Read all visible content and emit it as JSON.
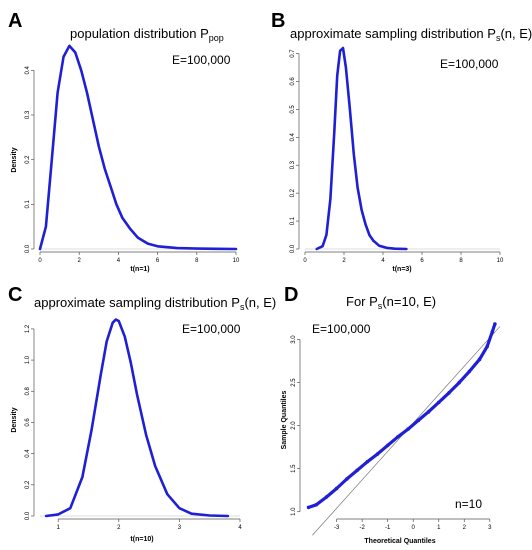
{
  "figure": {
    "panels": [
      {
        "letter": "A",
        "title": "population distribution P",
        "title_sub": "pop",
        "title_tail": "",
        "annotation": "E=100,000",
        "ylabel": "Density",
        "xlabel": "t(n=1)"
      },
      {
        "letter": "B",
        "title": "approximate sampling distribution P",
        "title_sub": "s",
        "title_tail": "(n, E)",
        "annotation": "E=100,000",
        "ylabel": "",
        "xlabel": "t(n=3)"
      },
      {
        "letter": "C",
        "title": "approximate sampling distribution P",
        "title_sub": "s",
        "title_tail": "(n, E)",
        "annotation": "E=100,000",
        "ylabel": "Density",
        "xlabel": "t(n=10)"
      },
      {
        "letter": "D",
        "title": "For P",
        "title_sub": "s",
        "title_tail": "(n=10, E)",
        "annotation": "E=100,000",
        "annotation2": "n=10",
        "ylabel": "Sample Quantiles",
        "xlabel": "Theoretical Quantiles"
      }
    ]
  },
  "colors": {
    "curve": "#1f1fd6",
    "baseline": "#bbbbbb",
    "refline": "#777777"
  },
  "chart_data": [
    {
      "type": "line",
      "title": "population distribution Ppop",
      "xlabel": "t(n=1)",
      "ylabel": "Density",
      "xlim": [
        0,
        10
      ],
      "ylim": [
        0,
        0.45
      ],
      "xticks": [
        0,
        2,
        4,
        6,
        8,
        10
      ],
      "yticks": [
        0.0,
        0.1,
        0.2,
        0.3,
        0.4
      ],
      "grid": false,
      "series": [
        {
          "x": [
            0.0,
            0.3,
            0.6,
            0.9,
            1.2,
            1.5,
            1.8,
            2.1,
            2.4,
            2.7,
            3.0,
            3.3,
            3.6,
            3.9,
            4.2,
            4.6,
            5.0,
            5.5,
            6.0,
            7.0,
            8.0,
            9.0,
            10.0
          ],
          "y": [
            0.0,
            0.05,
            0.2,
            0.35,
            0.43,
            0.455,
            0.44,
            0.4,
            0.35,
            0.29,
            0.23,
            0.18,
            0.14,
            0.1,
            0.07,
            0.045,
            0.025,
            0.012,
            0.006,
            0.002,
            0.001,
            0.0005,
            0.0
          ]
        }
      ]
    },
    {
      "type": "line",
      "title": "approximate sampling distribution Ps(n, E)",
      "xlabel": "t(n=3)",
      "ylabel": "",
      "xlim": [
        0,
        10
      ],
      "ylim": [
        0,
        0.72
      ],
      "xticks": [
        0,
        2,
        4,
        6,
        8,
        10
      ],
      "yticks": [
        0.0,
        0.1,
        0.2,
        0.3,
        0.4,
        0.5,
        0.6,
        0.7
      ],
      "grid": false,
      "series": [
        {
          "x": [
            0.6,
            0.9,
            1.1,
            1.3,
            1.5,
            1.65,
            1.8,
            1.95,
            2.1,
            2.3,
            2.5,
            2.7,
            2.9,
            3.1,
            3.3,
            3.5,
            3.8,
            4.2,
            4.6,
            5.2
          ],
          "y": [
            0.0,
            0.01,
            0.05,
            0.18,
            0.42,
            0.62,
            0.71,
            0.72,
            0.65,
            0.5,
            0.34,
            0.22,
            0.14,
            0.09,
            0.05,
            0.03,
            0.012,
            0.004,
            0.001,
            0.0
          ]
        }
      ]
    },
    {
      "type": "line",
      "title": "approximate sampling distribution Ps(n, E)",
      "xlabel": "t(n=10)",
      "ylabel": "Density",
      "xlim": [
        0.7,
        4.0
      ],
      "ylim": [
        0,
        1.27
      ],
      "xticks": [
        1,
        2,
        3,
        4
      ],
      "yticks": [
        0.0,
        0.2,
        0.4,
        0.6,
        0.8,
        1.0,
        1.2
      ],
      "grid": false,
      "series": [
        {
          "x": [
            0.8,
            1.0,
            1.2,
            1.4,
            1.55,
            1.7,
            1.8,
            1.9,
            1.95,
            2.0,
            2.1,
            2.2,
            2.3,
            2.45,
            2.6,
            2.8,
            3.0,
            3.2,
            3.5,
            3.8
          ],
          "y": [
            0.0,
            0.01,
            0.05,
            0.25,
            0.55,
            0.9,
            1.12,
            1.24,
            1.26,
            1.25,
            1.15,
            0.98,
            0.78,
            0.52,
            0.32,
            0.14,
            0.05,
            0.015,
            0.003,
            0.0
          ]
        }
      ]
    },
    {
      "type": "scatter",
      "title": "For Ps(n=10, E)",
      "xlabel": "Theoretical Quantiles",
      "ylabel": "Sample Quantiles",
      "xlim": [
        -4.2,
        3.4
      ],
      "ylim": [
        0.95,
        3.25
      ],
      "xticks": [
        -3,
        -2,
        -1,
        0,
        1,
        2,
        3
      ],
      "yticks": [
        1.0,
        1.5,
        2.0,
        2.5,
        3.0
      ],
      "grid": false,
      "reference_line": {
        "intercept": 2.03,
        "slope": 0.33
      },
      "series": [
        {
          "x": [
            -4.1,
            -3.8,
            -3.4,
            -3.0,
            -2.6,
            -2.2,
            -1.8,
            -1.4,
            -1.0,
            -0.6,
            -0.2,
            0.2,
            0.6,
            1.0,
            1.4,
            1.8,
            2.2,
            2.6,
            2.9,
            3.1,
            3.2
          ],
          "y": [
            1.05,
            1.08,
            1.17,
            1.27,
            1.38,
            1.48,
            1.58,
            1.67,
            1.77,
            1.87,
            1.96,
            2.06,
            2.16,
            2.27,
            2.38,
            2.5,
            2.63,
            2.77,
            2.92,
            3.09,
            3.18
          ]
        }
      ]
    }
  ]
}
